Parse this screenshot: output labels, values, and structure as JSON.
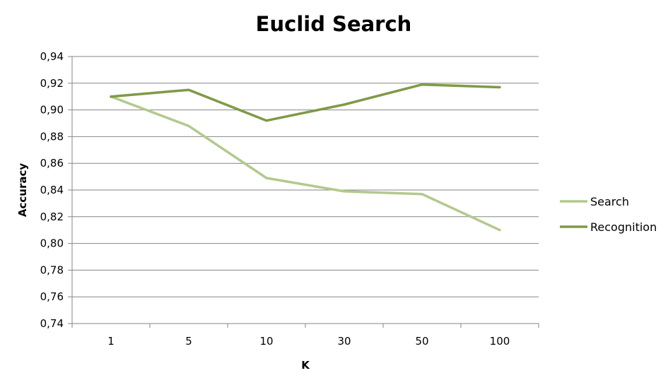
{
  "chart_data": {
    "type": "line",
    "title": "Euclid Search",
    "xlabel": "K",
    "ylabel": "Accuracy",
    "categories": [
      "1",
      "5",
      "10",
      "30",
      "50",
      "100"
    ],
    "ylim": [
      0.74,
      0.94
    ],
    "ytick_step": 0.02,
    "ytick_labels": [
      "0,74",
      "0,76",
      "0,78",
      "0,80",
      "0,82",
      "0,84",
      "0,86",
      "0,88",
      "0,90",
      "0,92",
      "0,94"
    ],
    "grid": true,
    "legend_position": "right",
    "series": [
      {
        "name": "Search",
        "color": "#b3c98e",
        "values": [
          0.91,
          0.888,
          0.849,
          0.839,
          0.837,
          0.81
        ]
      },
      {
        "name": "Recognition",
        "color": "#7e9a47",
        "values": [
          0.91,
          0.915,
          0.892,
          0.904,
          0.919,
          0.917
        ]
      }
    ]
  }
}
